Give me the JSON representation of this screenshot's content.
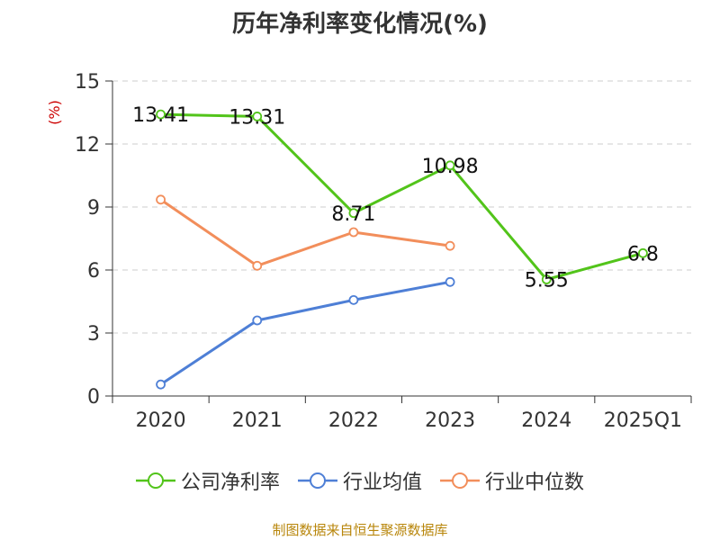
{
  "colors": {
    "net_margin": "#52c41a",
    "industry_avg": "#4e7fd6",
    "industry_median": "#f28e5b",
    "grid": "#cccccc",
    "axis": "#333333",
    "ylabel": "#cc0000",
    "source": "#b8860b"
  },
  "source_note": "制图数据来自恒生聚源数据库",
  "chart_data": {
    "type": "line",
    "title": "历年净利率变化情况(%)",
    "ylabel": "(%)",
    "xlabel": "",
    "categories": [
      "2020",
      "2021",
      "2022",
      "2023",
      "2024",
      "2025Q1"
    ],
    "ylim": [
      0,
      15
    ],
    "yticks": [
      0,
      3,
      6,
      9,
      12,
      15
    ],
    "grid": true,
    "legend_position": "bottom",
    "series": [
      {
        "name": "公司净利率",
        "values": [
          13.41,
          13.31,
          8.71,
          10.98,
          5.55,
          6.8
        ],
        "labels": [
          "13.41",
          "13.31",
          "8.71",
          "10.98",
          "5.55",
          "6.8"
        ],
        "show_labels": true
      },
      {
        "name": "行业均值",
        "values": [
          0.55,
          3.6,
          4.57,
          5.43,
          null,
          null
        ],
        "show_labels": false
      },
      {
        "name": "行业中位数",
        "values": [
          9.35,
          6.2,
          7.8,
          7.15,
          null,
          null
        ],
        "show_labels": false
      }
    ]
  }
}
